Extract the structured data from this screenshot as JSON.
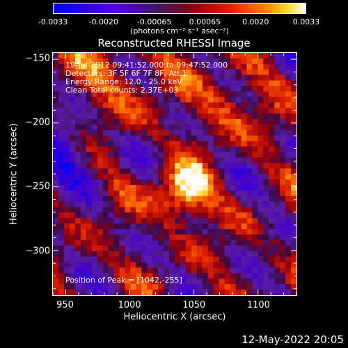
{
  "colorbar": {
    "ticks": [
      "-0.0033",
      "-0.0020",
      "-0.00065",
      "0.00065",
      "0.0020",
      "0.0033"
    ],
    "unit_label": "(photons cm⁻² s⁻¹ asec⁻²)",
    "range": [
      -0.0033,
      0.0033
    ]
  },
  "chart_data": {
    "type": "heatmap",
    "title": "Reconstructed RHESSI Image",
    "xlabel": "Heliocentric X (arcsec)",
    "ylabel": "Heliocentric Y (arcsec)",
    "xlim": [
      940,
      1130
    ],
    "ylim": [
      -335,
      -145
    ],
    "x_ticks": [
      950,
      1000,
      1050,
      1100
    ],
    "y_ticks": [
      -150,
      -200,
      -250,
      -300
    ],
    "peak": [
      1042,
      -255
    ],
    "annotations": [
      "19-Jul-2012 09:41:52.000 to 09:47:52.000",
      "Detectors: 3F 5F 6F 7F 8F, Att 1",
      "Energy Range: 12.0 - 25.0 keV",
      "Clean     Total counts: 2.37E+03"
    ],
    "peak_label": "Position of Peak = [1042,-255]"
  },
  "footer": {
    "timestamp": "12-May-2022 20:05"
  }
}
